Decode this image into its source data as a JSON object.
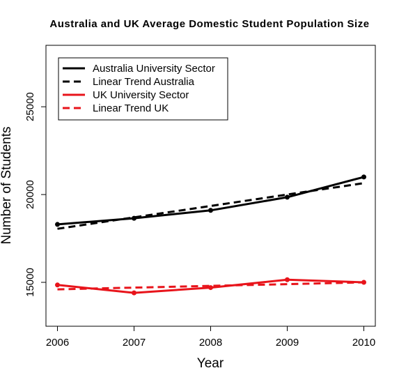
{
  "chart_data": {
    "type": "line",
    "title": "Australia and UK Average Domestic Student Population Size",
    "xlabel": "Year",
    "ylabel": "Number of Students",
    "x": [
      2006,
      2007,
      2008,
      2009,
      2010
    ],
    "x_ticks": [
      "2006",
      "2007",
      "2008",
      "2009",
      "2010"
    ],
    "xlim": [
      2005.85,
      2010.15
    ],
    "y_ticks": [
      15000,
      20000,
      25000
    ],
    "y_tick_labels": [
      "15000",
      "20000",
      "25000"
    ],
    "ylim": [
      12500,
      28500
    ],
    "grid": false,
    "legend_position": "top-left",
    "series": [
      {
        "name": "Australia University Sector",
        "values": [
          18300,
          18650,
          19100,
          19850,
          21000
        ],
        "color": "#000000",
        "style": "solid",
        "markers": true
      },
      {
        "name": "Linear Trend Australia",
        "values": [
          18050,
          18700,
          19350,
          20000,
          20650
        ],
        "color": "#000000",
        "style": "dashed",
        "markers": false
      },
      {
        "name": "UK University Sector",
        "values": [
          14850,
          14400,
          14700,
          15150,
          15000
        ],
        "color": "#e8141b",
        "style": "solid",
        "markers": true
      },
      {
        "name": "Linear Trend UK",
        "values": [
          14600,
          14700,
          14800,
          14900,
          15000
        ],
        "color": "#e8141b",
        "style": "dashed",
        "markers": false
      }
    ]
  }
}
